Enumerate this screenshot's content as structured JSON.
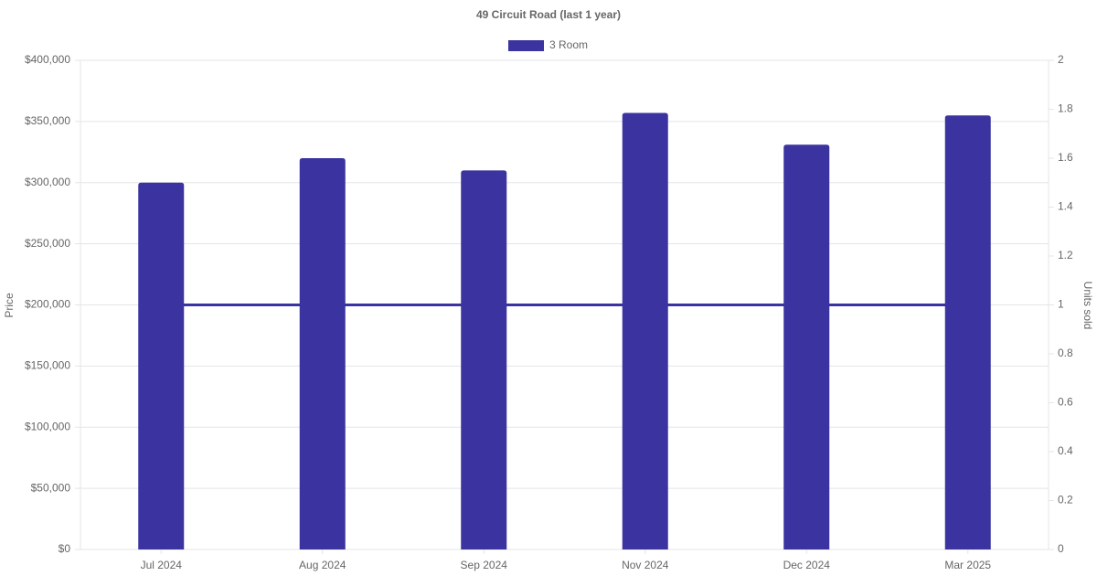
{
  "chart_data": {
    "type": "bar",
    "title": "49 Circuit Road (last 1 year)",
    "categories": [
      "Jul 2024",
      "Aug 2024",
      "Sep 2024",
      "Nov 2024",
      "Dec 2024",
      "Mar 2025"
    ],
    "series": [
      {
        "name": "3 Room",
        "type": "bar",
        "color": "#3a33a0",
        "values": [
          300000,
          320000,
          310000,
          357000,
          331000,
          355000
        ]
      },
      {
        "type": "line",
        "axis": "y2",
        "color": "#3a33a0",
        "values": [
          1,
          1,
          1,
          1,
          1,
          1
        ]
      }
    ],
    "y_label": "Price",
    "y2_label": "Units sold",
    "ylim": [
      0,
      400000
    ],
    "yticks": [
      {
        "value": 0,
        "label": "$0"
      },
      {
        "value": 50000,
        "label": "$50,000"
      },
      {
        "value": 100000,
        "label": "$100,000"
      },
      {
        "value": 150000,
        "label": "$150,000"
      },
      {
        "value": 200000,
        "label": "$200,000"
      },
      {
        "value": 250000,
        "label": "$250,000"
      },
      {
        "value": 300000,
        "label": "$300,000"
      },
      {
        "value": 350000,
        "label": "$350,000"
      },
      {
        "value": 400000,
        "label": "$400,000"
      }
    ],
    "y2lim": [
      0,
      2
    ],
    "y2ticks": [
      0,
      0.2,
      0.4,
      0.6,
      0.8,
      1,
      1.2,
      1.4,
      1.6,
      1.8,
      2
    ],
    "grid": true,
    "legend": "top"
  }
}
